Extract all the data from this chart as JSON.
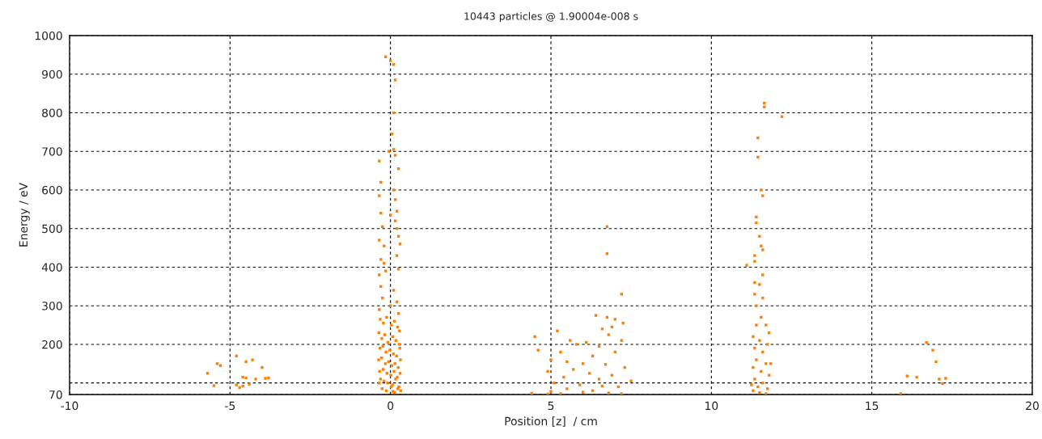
{
  "chart_data": {
    "type": "scatter",
    "title": "10443 particles @ 1.90004e-008 s",
    "xlabel": "Position [z]  / cm",
    "ylabel": "Energy / eV",
    "xlim": [
      -10,
      20
    ],
    "ylim": [
      70,
      1000
    ],
    "xticks": [
      -10,
      -5,
      0,
      5,
      10,
      15,
      20
    ],
    "yticks": [
      70,
      {
        "value": 100,
        "label": null
      },
      200,
      300,
      400,
      500,
      600,
      700,
      800,
      900,
      1000
    ],
    "grid": true,
    "marker": "square",
    "series": [
      {
        "color": "#ff8000",
        "x": [
          -0.15,
          0.0,
          0.1,
          0.15,
          0.1,
          0.05,
          0.1,
          -0.05,
          0.15,
          -0.35,
          0.25,
          -0.3,
          0.1,
          -0.35,
          0.15,
          0.2,
          -0.3,
          0.0,
          -0.25,
          0.15,
          0.2,
          0.25,
          -0.35,
          -0.2,
          0.3,
          -0.3,
          -0.2,
          0.2,
          -0.35,
          -0.15,
          0.25,
          -0.3,
          0.1,
          -0.25,
          0.2,
          -0.35,
          0.0,
          0.25,
          -0.32,
          -0.22,
          -0.12,
          0.03,
          0.12,
          0.22,
          0.28,
          -0.36,
          -0.27,
          -0.18,
          -0.08,
          0.07,
          0.17,
          0.27,
          -0.33,
          -0.24,
          -0.14,
          -0.02,
          0.09,
          0.19,
          0.29,
          -0.37,
          -0.28,
          -0.16,
          -0.06,
          0.04,
          0.14,
          0.24,
          0.31,
          -0.34,
          -0.23,
          -0.11,
          0.01,
          0.11,
          0.21,
          0.3,
          -0.31,
          -0.2,
          -0.09,
          0.06,
          0.16,
          0.26,
          -0.35,
          -0.26,
          -0.13,
          0.02,
          0.13,
          0.23,
          0.32,
          0.08,
          11.65,
          11.65,
          12.2,
          11.45,
          11.45,
          11.55,
          11.6,
          11.4,
          11.4,
          11.5,
          11.55,
          11.6,
          11.1,
          11.35,
          11.35,
          11.6,
          11.5,
          11.35,
          11.35,
          11.6,
          11.4,
          11.55,
          11.7,
          11.4,
          11.8,
          11.3,
          11.5,
          11.75,
          11.35,
          11.6,
          11.4,
          11.7,
          11.3,
          11.55,
          11.8,
          11.35,
          11.6,
          11.45,
          11.75,
          11.3,
          11.5,
          11.7,
          11.25,
          11.85,
          6.75,
          6.75,
          7.2,
          6.4,
          6.75,
          7.0,
          7.25,
          6.6,
          6.9,
          5.2,
          6.8,
          4.5,
          5.6,
          7.2,
          6.1,
          5.8,
          6.5,
          4.6,
          5.3,
          7.0,
          6.3,
          5.0,
          5.5,
          6.0,
          6.7,
          7.3,
          5.7,
          4.9,
          6.2,
          6.9,
          5.4,
          6.5,
          7.5,
          5.1,
          5.9,
          6.6,
          7.1,
          5.5,
          6.3,
          5.0,
          6.0,
          6.8,
          5.3,
          7.2,
          4.4,
          4.9,
          -5.4,
          -5.3,
          -5.7,
          -4.8,
          -4.3,
          -4.5,
          -4.0,
          -4.6,
          -4.5,
          -3.8,
          -4.2,
          -3.9,
          -4.8,
          -4.6,
          -4.7,
          -4.4,
          -5.5,
          16.7,
          16.9,
          17.0,
          16.1,
          16.4,
          17.1,
          17.3,
          17.2,
          15.9
        ],
        "values": [
          945,
          935,
          925,
          885,
          800,
          745,
          705,
          700,
          690,
          675,
          655,
          620,
          600,
          585,
          575,
          545,
          540,
          535,
          505,
          520,
          500,
          480,
          470,
          455,
          460,
          420,
          410,
          430,
          380,
          390,
          395,
          350,
          340,
          320,
          310,
          290,
          300,
          280,
          265,
          255,
          270,
          250,
          260,
          245,
          235,
          230,
          215,
          225,
          205,
          220,
          210,
          200,
          190,
          195,
          180,
          185,
          175,
          170,
          190,
          160,
          165,
          150,
          155,
          145,
          150,
          140,
          160,
          130,
          135,
          125,
          120,
          130,
          115,
          125,
          110,
          105,
          100,
          95,
          110,
          90,
          100,
          85,
          80,
          90,
          75,
          85,
          80,
          78,
          825,
          815,
          790,
          735,
          685,
          600,
          585,
          530,
          515,
          480,
          455,
          445,
          405,
          430,
          415,
          380,
          355,
          360,
          330,
          320,
          300,
          270,
          250,
          250,
          230,
          220,
          210,
          200,
          190,
          180,
          160,
          150,
          140,
          130,
          120,
          110,
          100,
          90,
          85,
          80,
          75,
          72,
          95,
          150,
          505,
          435,
          330,
          275,
          270,
          265,
          255,
          240,
          245,
          235,
          225,
          220,
          210,
          210,
          205,
          200,
          195,
          185,
          180,
          180,
          170,
          160,
          155,
          150,
          148,
          140,
          135,
          130,
          125,
          120,
          115,
          110,
          105,
          100,
          95,
          92,
          90,
          85,
          80,
          78,
          76,
          74,
          72,
          72,
          73,
          71,
          150,
          145,
          125,
          170,
          160,
          155,
          140,
          115,
          113,
          113,
          110,
          112,
          95,
          92,
          88,
          97,
          93,
          205,
          185,
          155,
          118,
          115,
          110,
          112,
          98,
          72
        ]
      }
    ]
  }
}
